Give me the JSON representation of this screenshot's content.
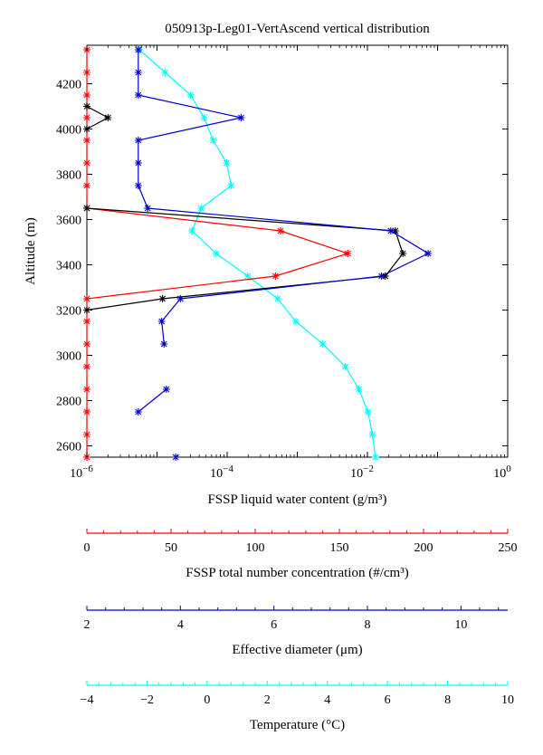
{
  "chart_data": {
    "type": "line",
    "title": "050913p-Leg01-VertAscend vertical distribution",
    "ylabel": "Altitude (m)",
    "ylim": [
      2550,
      4370
    ],
    "y_ticks": [
      2600,
      2800,
      3000,
      3200,
      3400,
      3600,
      3800,
      4000,
      4200
    ],
    "grid": false,
    "colors": {
      "lwc": "#000000",
      "concentration": "#ff0000",
      "diameter": "#0000cc",
      "temperature": "#00ffff"
    },
    "axes": [
      {
        "id": "lwc",
        "xlabel": "FSSP liquid water content (g/m³)",
        "scale": "log",
        "xlim": [
          1e-06,
          1
        ],
        "tick_labels": [
          {
            "value": 1e-06,
            "base": "10",
            "exp": "−6"
          },
          {
            "value": 0.0001,
            "base": "10",
            "exp": "−4"
          },
          {
            "value": 0.01,
            "base": "10",
            "exp": "−2"
          },
          {
            "value": 1,
            "base": "10",
            "exp": "0"
          }
        ]
      },
      {
        "id": "concentration",
        "xlabel": "FSSP total number concentration (#/cm³)",
        "scale": "linear",
        "xlim": [
          0,
          250
        ],
        "ticks": [
          0,
          50,
          100,
          150,
          200,
          250
        ],
        "tick_labels": [
          "0",
          "50",
          "100",
          "150",
          "200",
          "250"
        ]
      },
      {
        "id": "diameter",
        "xlabel": "Effective diameter (μm)",
        "scale": "linear",
        "xlim": [
          2,
          11
        ],
        "ticks": [
          2,
          4,
          6,
          8,
          10
        ],
        "tick_labels": [
          "2",
          "4",
          "6",
          "8",
          "10"
        ]
      },
      {
        "id": "temperature",
        "xlabel": "Temperature (°C)",
        "scale": "linear",
        "xlim": [
          -4,
          10
        ],
        "ticks": [
          -4,
          -2,
          0,
          2,
          4,
          6,
          8,
          10
        ],
        "tick_labels": [
          "−4",
          "−2",
          "0",
          "2",
          "4",
          "6",
          "8",
          "10"
        ]
      }
    ],
    "series": [
      {
        "axis": "lwc",
        "segments": [
          [
            [
              1e-06,
              4100
            ],
            [
              2e-06,
              4050
            ],
            [
              1e-06,
              4000
            ]
          ],
          [
            [
              1e-06,
              3650
            ],
            [
              0.025,
              3550
            ],
            [
              0.032,
              3450
            ],
            [
              0.018,
              3350
            ],
            [
              1.2e-05,
              3250
            ],
            [
              1e-06,
              3200
            ]
          ]
        ]
      },
      {
        "axis": "concentration",
        "segments": [
          [
            [
              0,
              4350
            ],
            [
              0,
              4250
            ],
            [
              0,
              4150
            ],
            [
              0,
              4050
            ],
            [
              0,
              3950
            ],
            [
              0,
              3850
            ],
            [
              0,
              3750
            ],
            [
              0,
              3650
            ],
            [
              115,
              3550
            ],
            [
              155,
              3450
            ],
            [
              112,
              3350
            ],
            [
              0,
              3250
            ],
            [
              0,
              3150
            ],
            [
              0,
              3050
            ],
            [
              0,
              2950
            ],
            [
              0,
              2850
            ],
            [
              0,
              2750
            ],
            [
              0,
              2650
            ],
            [
              0,
              2550
            ]
          ]
        ]
      },
      {
        "axis": "diameter",
        "segments": [
          [
            [
              3.1,
              4350
            ],
            [
              3.1,
              4250
            ],
            [
              3.1,
              4150
            ],
            [
              5.3,
              4050
            ],
            [
              3.1,
              3950
            ],
            [
              3.1,
              3850
            ],
            [
              3.1,
              3750
            ],
            [
              3.3,
              3650
            ],
            [
              8.5,
              3550
            ],
            [
              9.3,
              3450
            ],
            [
              8.3,
              3350
            ],
            [
              4.0,
              3250
            ],
            [
              3.6,
              3150
            ],
            [
              3.65,
              3050
            ]
          ],
          [
            [
              3.1,
              2750
            ],
            [
              3.7,
              2850
            ]
          ],
          [
            [
              3.9,
              2550
            ]
          ]
        ]
      },
      {
        "axis": "temperature",
        "segments": [
          [
            [
              -2.25,
              4350
            ],
            [
              -1.4,
              4250
            ],
            [
              -0.55,
              4150
            ],
            [
              -0.1,
              4050
            ],
            [
              0.2,
              3950
            ],
            [
              0.65,
              3850
            ],
            [
              0.8,
              3750
            ],
            [
              -0.2,
              3650
            ],
            [
              -0.5,
              3550
            ],
            [
              0.3,
              3450
            ],
            [
              1.35,
              3350
            ],
            [
              2.35,
              3250
            ],
            [
              2.95,
              3150
            ],
            [
              3.85,
              3050
            ],
            [
              4.6,
              2950
            ],
            [
              5.05,
              2850
            ],
            [
              5.35,
              2750
            ],
            [
              5.5,
              2650
            ],
            [
              5.6,
              2550
            ]
          ]
        ]
      }
    ]
  }
}
